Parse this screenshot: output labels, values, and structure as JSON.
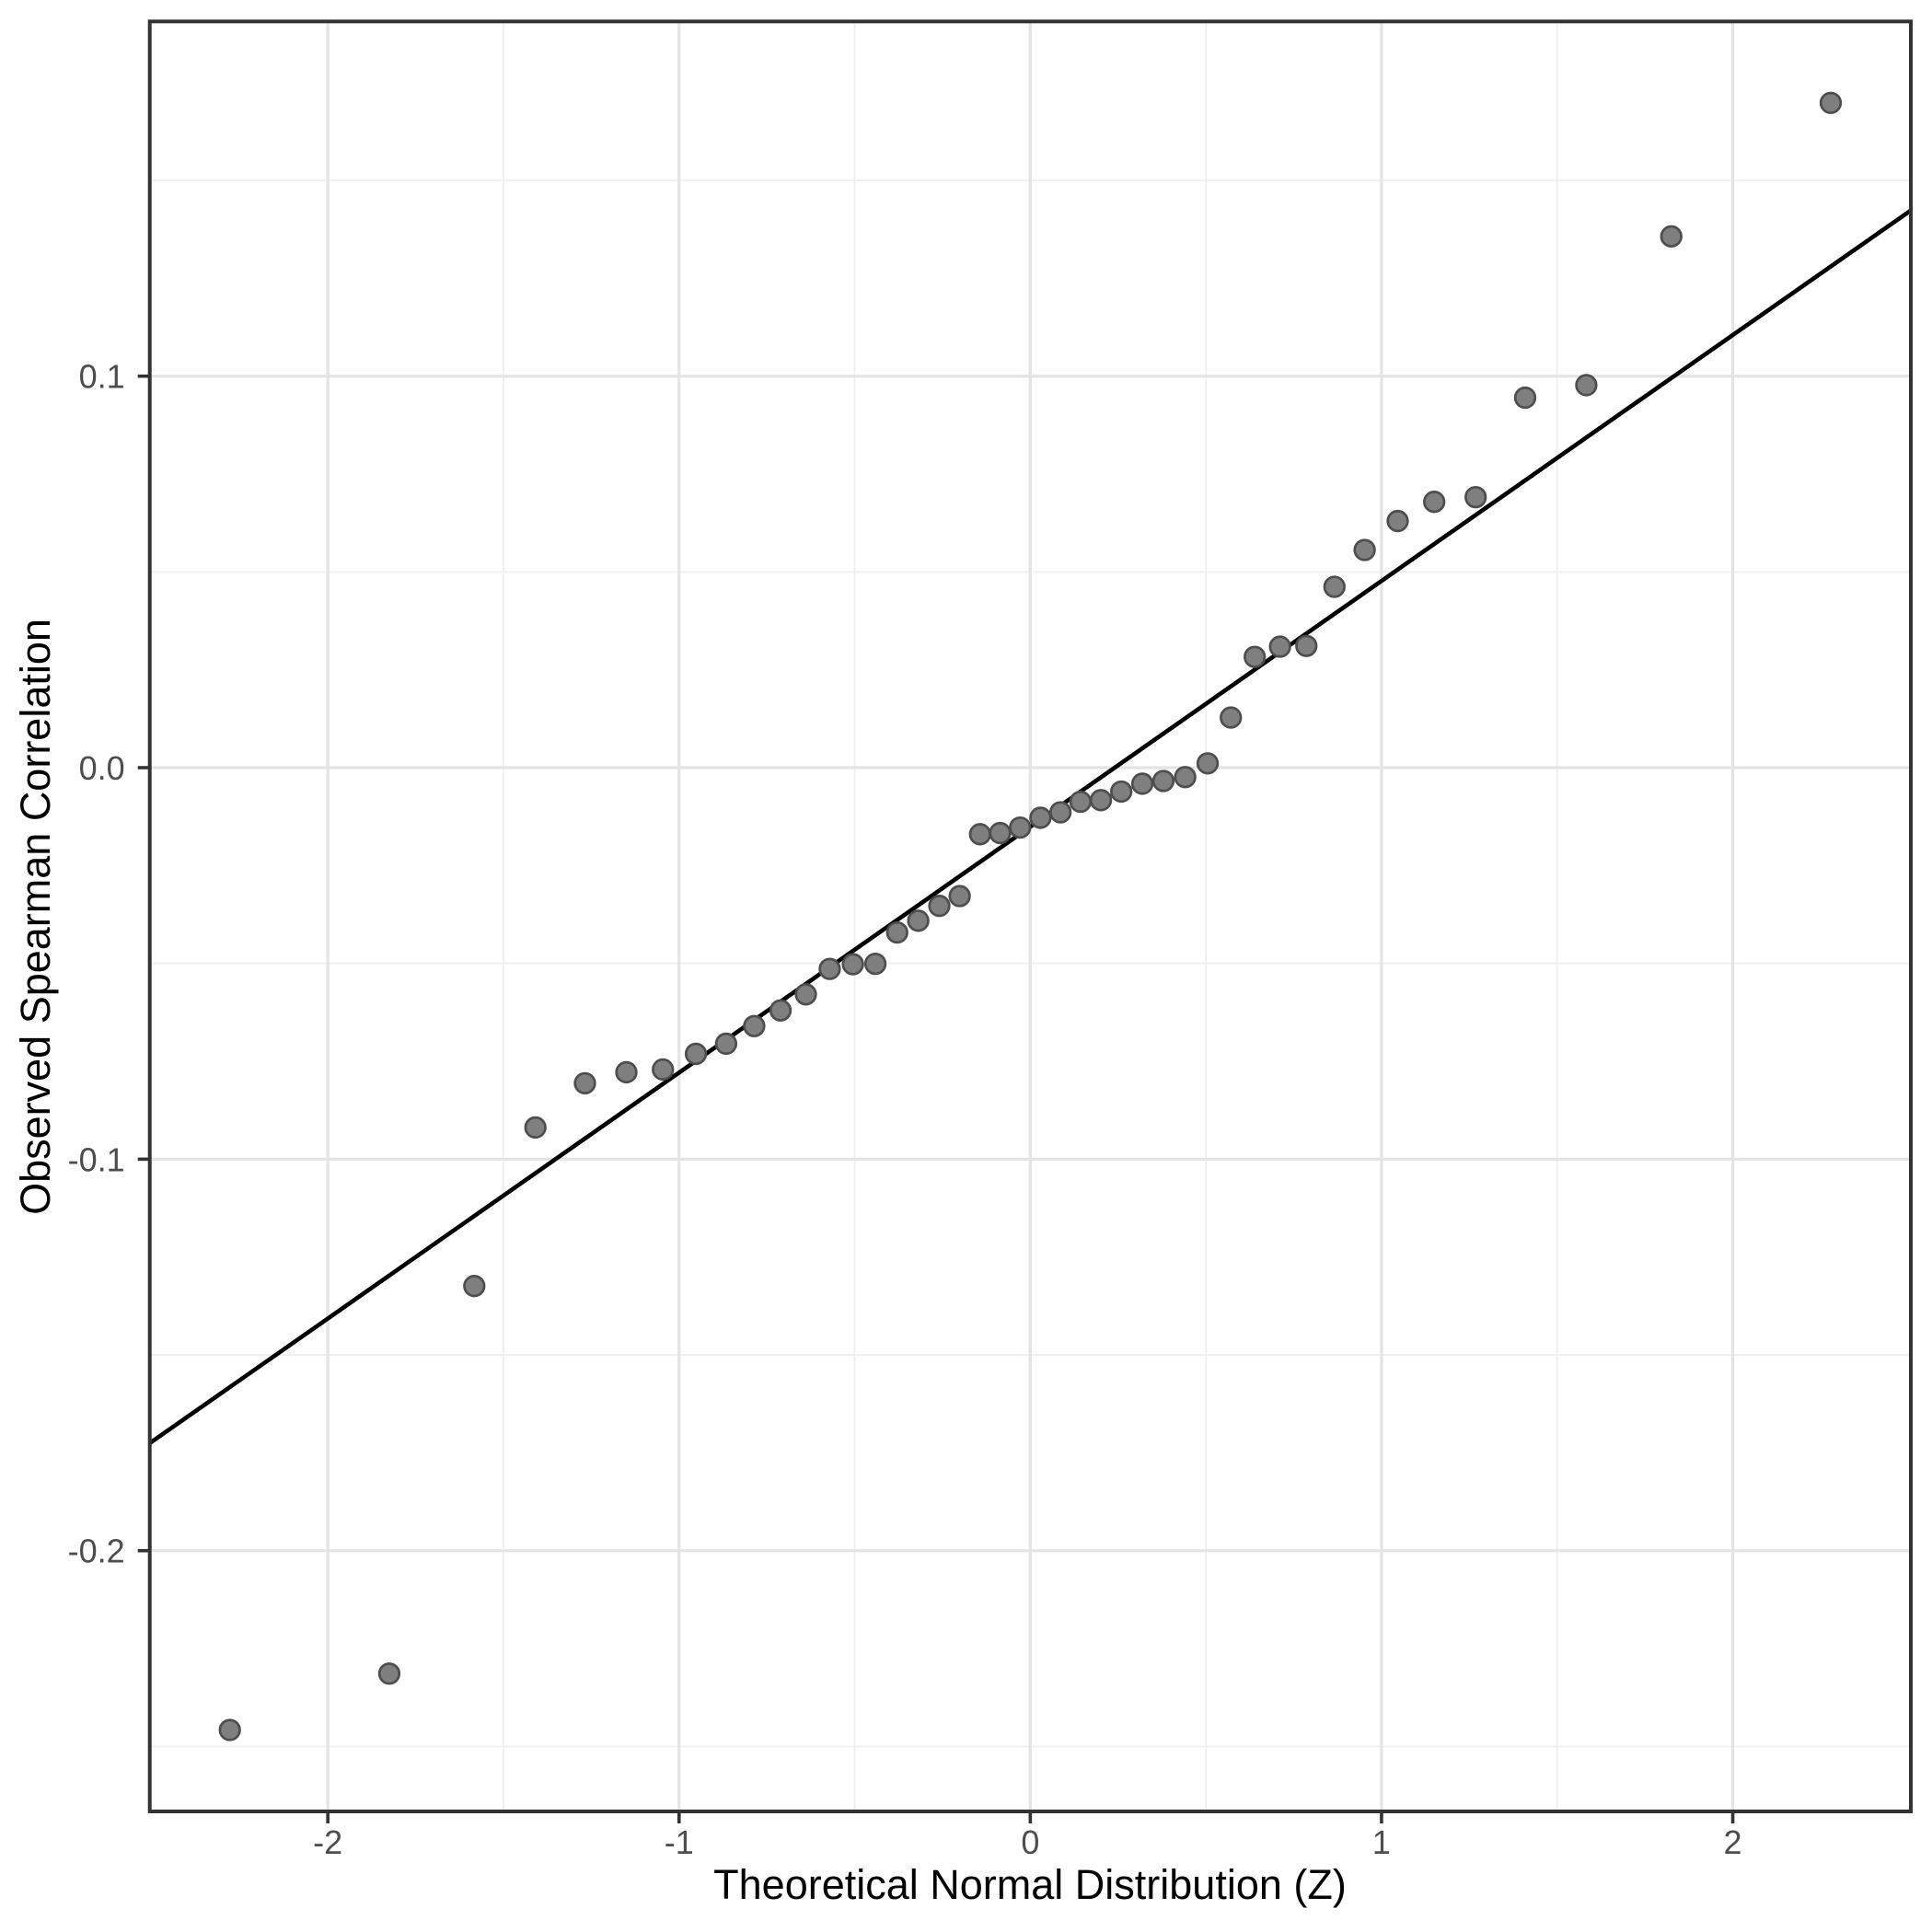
{
  "chart_data": {
    "type": "scatter",
    "title": "",
    "xlabel": "Theoretical Normal Distribution (Z)",
    "ylabel": "Observed Spearman Correlation",
    "xlim": [
      -2.507,
      2.507
    ],
    "ylim": [
      -0.2666,
      0.1906
    ],
    "grid": true,
    "legend": "none",
    "x_major_ticks": [
      -2,
      -1,
      0,
      1,
      2
    ],
    "x_tick_labels": [
      "-2",
      "-1",
      "0",
      "1",
      "2"
    ],
    "y_major_ticks": [
      0.1,
      0.0,
      -0.1,
      -0.2
    ],
    "y_tick_labels": [
      "0.1",
      "0.0",
      "-0.1",
      "-0.2"
    ],
    "x_minor_ticks": [
      -1.5,
      -0.5,
      0.5,
      1.5
    ],
    "y_minor_ticks": [
      0.15,
      0.05,
      -0.05,
      -0.15,
      -0.25
    ],
    "reference_line": {
      "intercept": -0.0151,
      "slope": 0.0628
    },
    "points": [
      [
        -2.279,
        -0.2458
      ],
      [
        -1.825,
        -0.2314
      ],
      [
        -1.583,
        -0.1324
      ],
      [
        -1.409,
        -0.0919
      ],
      [
        -1.268,
        -0.0806
      ],
      [
        -1.15,
        -0.0778
      ],
      [
        -1.046,
        -0.0771
      ],
      [
        -0.952,
        -0.0731
      ],
      [
        -0.866,
        -0.0705
      ],
      [
        -0.786,
        -0.066
      ],
      [
        -0.711,
        -0.062
      ],
      [
        -0.639,
        -0.0579
      ],
      [
        -0.571,
        -0.0514
      ],
      [
        -0.505,
        -0.0502
      ],
      [
        -0.441,
        -0.0501
      ],
      [
        -0.379,
        -0.0421
      ],
      [
        -0.319,
        -0.0391
      ],
      [
        -0.259,
        -0.0353
      ],
      [
        -0.201,
        -0.0328
      ],
      [
        -0.143,
        -0.017
      ],
      [
        -0.086,
        -0.0167
      ],
      [
        -0.029,
        -0.0153
      ],
      [
        0.029,
        -0.0128
      ],
      [
        0.086,
        -0.0114
      ],
      [
        0.143,
        -0.0087
      ],
      [
        0.201,
        -0.0083
      ],
      [
        0.259,
        -0.0061
      ],
      [
        0.319,
        -0.0041
      ],
      [
        0.379,
        -0.0034
      ],
      [
        0.441,
        -0.0024
      ],
      [
        0.505,
        0.0011
      ],
      [
        0.571,
        0.0128
      ],
      [
        0.639,
        0.0283
      ],
      [
        0.711,
        0.0309
      ],
      [
        0.786,
        0.0311
      ],
      [
        0.866,
        0.0462
      ],
      [
        0.952,
        0.0556
      ],
      [
        1.046,
        0.063
      ],
      [
        1.15,
        0.0679
      ],
      [
        1.268,
        0.0691
      ],
      [
        1.409,
        0.0945
      ],
      [
        1.583,
        0.0977
      ],
      [
        1.825,
        0.1357
      ],
      [
        2.279,
        0.1698
      ]
    ]
  },
  "style": {
    "background": "#ffffff",
    "panel_border_color": "#333333",
    "major_grid_color": "#e4e4e4",
    "minor_grid_color": "#efefef",
    "tick_color": "#333333",
    "tick_label_color": "#4d4d4d",
    "axis_title_color": "#000000",
    "point_fill": "#7f7f7f",
    "point_stroke": "#4e4e4e",
    "line_color": "#000000"
  }
}
